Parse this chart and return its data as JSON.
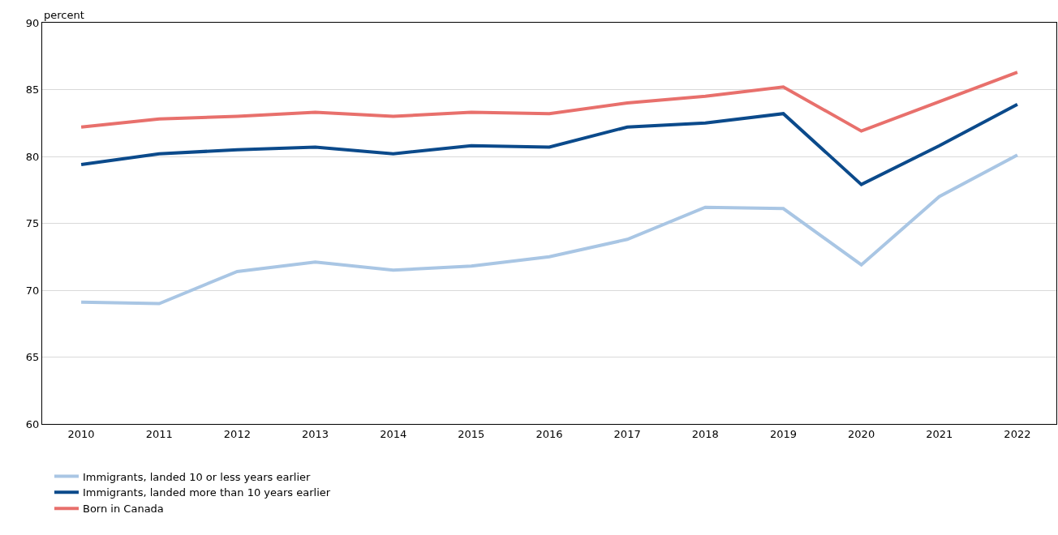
{
  "chart_data": {
    "type": "line",
    "ylabel": "percent",
    "categories": [
      "2010",
      "2011",
      "2012",
      "2013",
      "2014",
      "2015",
      "2016",
      "2017",
      "2018",
      "2019",
      "2020",
      "2021",
      "2022"
    ],
    "series": [
      {
        "name": "Immigrants, landed 10 or less years earlier",
        "color": "#a9c6e4",
        "values": [
          69.1,
          69.0,
          71.4,
          72.1,
          71.5,
          71.8,
          72.5,
          73.8,
          76.2,
          76.1,
          71.9,
          77.0,
          80.1
        ]
      },
      {
        "name": "Immigrants, landed more than 10 years earlier",
        "color": "#0b4a8b",
        "values": [
          79.4,
          80.2,
          80.5,
          80.7,
          80.2,
          80.8,
          80.7,
          82.2,
          82.5,
          83.2,
          77.9,
          80.8,
          83.9
        ]
      },
      {
        "name": "Born in Canada",
        "color": "#e8706c",
        "values": [
          82.2,
          82.8,
          83.0,
          83.3,
          83.0,
          83.3,
          83.2,
          84.0,
          84.5,
          85.2,
          81.9,
          84.1,
          86.3
        ]
      }
    ],
    "ylim": [
      60,
      90
    ],
    "yticks": [
      60,
      65,
      70,
      75,
      80,
      85,
      90
    ],
    "grid": "y",
    "legend": "bottom",
    "marker": "none",
    "line_style": "solid"
  }
}
